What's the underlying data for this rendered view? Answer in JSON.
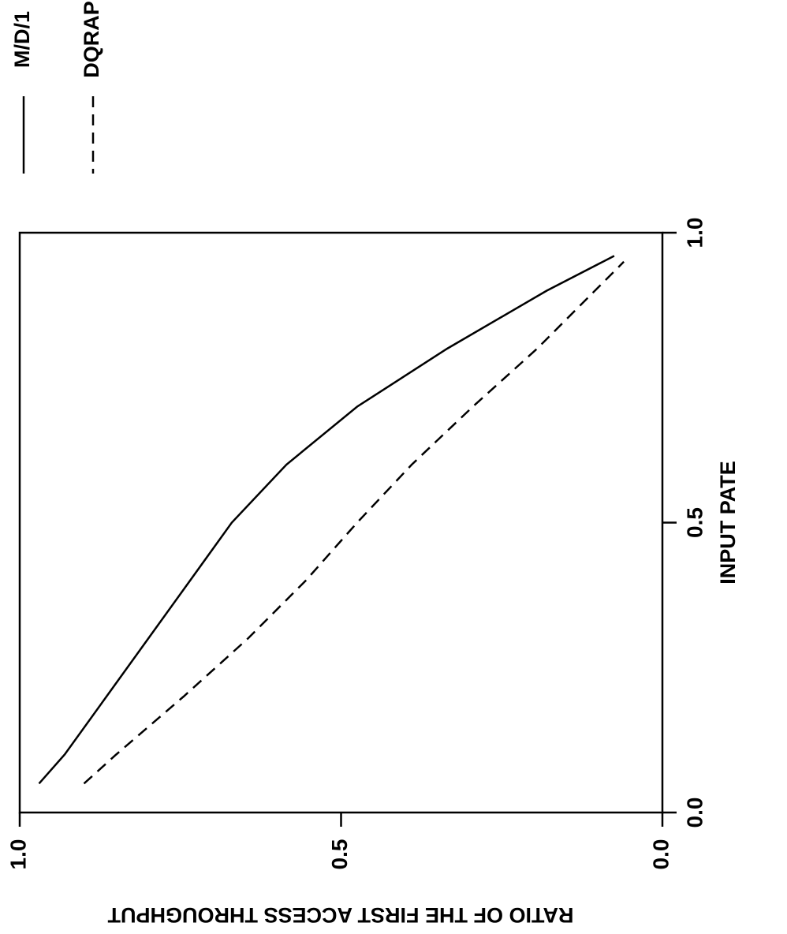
{
  "chart_data": {
    "type": "line",
    "orientation": "rotated-90-clockwise",
    "xlabel": "INPUT PATE",
    "ylabel": "RATIO OF THE FIRST ACCESS THROUGHPUT",
    "xlim": [
      0.0,
      1.0
    ],
    "ylim": [
      0.0,
      1.0
    ],
    "x_ticks": [
      "0.0",
      "0.5",
      "1.0"
    ],
    "y_ticks": [
      "0.0",
      "0.5",
      "1.0"
    ],
    "grid": false,
    "legend_position": "top",
    "series": [
      {
        "name": "M/D/1",
        "style": "solid",
        "color": "#000000",
        "points": [
          [
            0.05,
            0.97
          ],
          [
            0.1,
            0.93
          ],
          [
            0.2,
            0.865
          ],
          [
            0.3,
            0.8
          ],
          [
            0.4,
            0.735
          ],
          [
            0.5,
            0.67
          ],
          [
            0.6,
            0.585
          ],
          [
            0.7,
            0.475
          ],
          [
            0.8,
            0.335
          ],
          [
            0.9,
            0.18
          ],
          [
            0.96,
            0.075
          ]
        ]
      },
      {
        "name": "DQRAP",
        "style": "dashed",
        "color": "#000000",
        "points": [
          [
            0.05,
            0.9
          ],
          [
            0.1,
            0.85
          ],
          [
            0.2,
            0.745
          ],
          [
            0.3,
            0.645
          ],
          [
            0.4,
            0.555
          ],
          [
            0.5,
            0.475
          ],
          [
            0.6,
            0.39
          ],
          [
            0.7,
            0.295
          ],
          [
            0.8,
            0.195
          ],
          [
            0.9,
            0.105
          ],
          [
            0.95,
            0.06
          ]
        ]
      }
    ]
  }
}
